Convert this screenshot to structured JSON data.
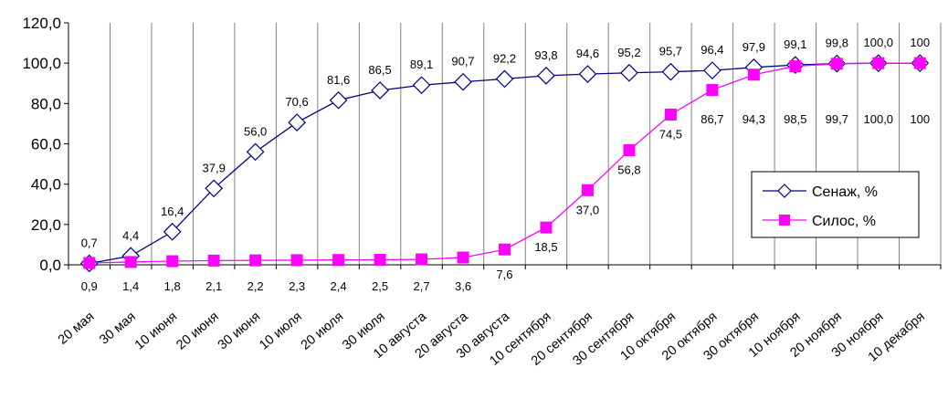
{
  "chart_data": {
    "type": "line",
    "title": "",
    "xlabel": "",
    "ylabel": "",
    "categories": [
      "20 мая",
      "30 мая",
      "10 июня",
      "20 июня",
      "30 июня",
      "10 июля",
      "20 июля",
      "30 июля",
      "10 августа",
      "20 августа",
      "30 августа",
      "10 сентября",
      "20 сентября",
      "30 сентября",
      "10 октября",
      "20 октября",
      "30 октября",
      "10 ноября",
      "20 ноября",
      "30 ноября",
      "10 декабря"
    ],
    "ylim": [
      0,
      120
    ],
    "yticks": [
      "0,0",
      "20,0",
      "40,0",
      "60,0",
      "80,0",
      "100,0",
      "120,0"
    ],
    "grid": "vertical",
    "legend_position": "right",
    "series": [
      {
        "name": "Сенаж, %",
        "values": [
          0.7,
          4.4,
          16.4,
          37.9,
          56.0,
          70.6,
          81.6,
          86.5,
          89.1,
          90.7,
          92.2,
          93.8,
          94.6,
          95.2,
          95.7,
          96.4,
          97.9,
          99.1,
          99.8,
          100.0,
          100.0
        ],
        "labels": [
          "0,7",
          "4,4",
          "16,4",
          "37,9",
          "56,0",
          "70,6",
          "81,6",
          "86,5",
          "89,1",
          "90,7",
          "92,2",
          "93,8",
          "94,6",
          "95,2",
          "95,7",
          "96,4",
          "97,9",
          "99,1",
          "99,8",
          "100,0",
          "100"
        ],
        "line_color": "#000080",
        "marker": "diamond-open"
      },
      {
        "name": "Силос, %",
        "values": [
          0.9,
          1.4,
          1.8,
          2.1,
          2.2,
          2.3,
          2.4,
          2.5,
          2.7,
          3.6,
          7.6,
          18.5,
          37.0,
          56.8,
          74.5,
          86.7,
          94.3,
          98.5,
          99.7,
          100.0,
          100.0
        ],
        "labels": [
          "0,9",
          "1,4",
          "1,8",
          "2,1",
          "2,2",
          "2,3",
          "2,4",
          "2,5",
          "2,7",
          "3,6",
          "7,6",
          "18,5",
          "37,0",
          "56,8",
          "74,5",
          "86,7",
          "94,3",
          "98,5",
          "99,7",
          "100,0",
          "100"
        ],
        "line_color": "#FF00FF",
        "marker": "square-filled"
      }
    ]
  }
}
